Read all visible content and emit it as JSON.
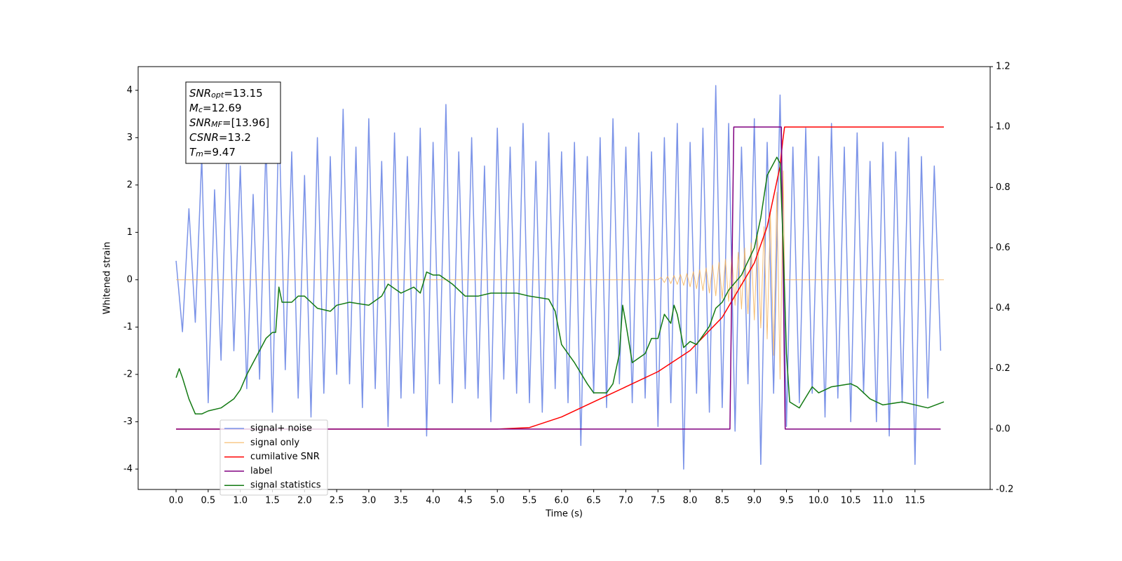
{
  "chart_data": {
    "type": "line",
    "xlabel": "Time (s)",
    "ylabel": "Whitened strain",
    "xlim": [
      -0.59,
      12.67
    ],
    "ylim": [
      -4.43,
      4.5
    ],
    "y2lim": [
      -0.2,
      1.2
    ],
    "xticks": [
      {
        "value": 0,
        "label": "0.0"
      },
      0.5,
      {
        "value": 1,
        "label": "1.0"
      },
      1.5,
      {
        "value": 2,
        "label": "2.0"
      },
      2.5,
      {
        "value": 3,
        "label": "3.0"
      },
      3.5,
      {
        "value": 4,
        "label": "4.0"
      },
      4.5,
      {
        "value": 5,
        "label": "5.0"
      },
      5.5,
      {
        "value": 6,
        "label": "6.0"
      },
      6.5,
      {
        "value": 7,
        "label": "7.0"
      },
      7.5,
      {
        "value": 8,
        "label": "8.0"
      },
      8.5,
      {
        "value": 9,
        "label": "9.0"
      },
      9.5,
      {
        "value": 10,
        "label": "10.0"
      },
      10.5,
      {
        "value": 11,
        "label": "11.0"
      },
      11.5
    ],
    "yticks": [
      -4,
      -3,
      -2,
      -1,
      0,
      1,
      2,
      3,
      4
    ],
    "y2ticks": [
      -0.2,
      {
        "value": 0,
        "label": "0.0"
      },
      0.2,
      0.4,
      0.6,
      0.8,
      {
        "value": 1,
        "label": "1.0"
      },
      1.2
    ],
    "legend": "lower left",
    "annotations": [
      {
        "base": "SNR",
        "sub": "opt",
        "rest": "=13.15"
      },
      {
        "base": "M",
        "sub": "c",
        "rest": "=12.69"
      },
      {
        "base": "SNR",
        "sub": "MF",
        "rest": "=[13.96]"
      },
      {
        "base": "CSNR",
        "sub": "",
        "rest": "=13.2"
      },
      {
        "base": "T",
        "sub": "m",
        "rest": "=9.47"
      }
    ],
    "series": [
      {
        "name": "signal+ noise",
        "color": "#7b93e8",
        "x": [
          0.0,
          0.1,
          0.2,
          0.3,
          0.4,
          0.5,
          0.6,
          0.7,
          0.8,
          0.9,
          1.0,
          1.1,
          1.2,
          1.3,
          1.4,
          1.5,
          1.6,
          1.7,
          1.8,
          1.9,
          2.0,
          2.1,
          2.2,
          2.3,
          2.4,
          2.5,
          2.6,
          2.7,
          2.8,
          2.9,
          3.0,
          3.1,
          3.2,
          3.3,
          3.4,
          3.5,
          3.6,
          3.7,
          3.8,
          3.9,
          4.0,
          4.1,
          4.2,
          4.3,
          4.4,
          4.5,
          4.6,
          4.7,
          4.8,
          4.9,
          5.0,
          5.1,
          5.2,
          5.3,
          5.4,
          5.5,
          5.6,
          5.7,
          5.8,
          5.9,
          6.0,
          6.1,
          6.2,
          6.3,
          6.4,
          6.5,
          6.6,
          6.7,
          6.8,
          6.9,
          7.0,
          7.1,
          7.2,
          7.3,
          7.4,
          7.5,
          7.6,
          7.7,
          7.8,
          7.9,
          8.0,
          8.1,
          8.2,
          8.3,
          8.4,
          8.5,
          8.6,
          8.7,
          8.8,
          8.9,
          9.0,
          9.1,
          9.2,
          9.3,
          9.4,
          9.5,
          9.6,
          9.7,
          9.8,
          9.9,
          10.0,
          10.1,
          10.2,
          10.3,
          10.4,
          10.5,
          10.6,
          10.7,
          10.8,
          10.9,
          11.0,
          11.1,
          11.2,
          11.3,
          11.4,
          11.5,
          11.6,
          11.7,
          11.8,
          11.9
        ],
        "values": [
          0.4,
          -1.1,
          1.5,
          -0.9,
          2.6,
          -2.6,
          1.9,
          -1.7,
          3.3,
          -1.5,
          2.4,
          -2.3,
          1.8,
          -2.1,
          2.9,
          -2.8,
          3.5,
          -1.9,
          2.7,
          -2.5,
          2.2,
          -2.9,
          3.0,
          -2.4,
          2.6,
          -2.0,
          3.6,
          -2.2,
          2.8,
          -2.7,
          3.4,
          -2.3,
          2.5,
          -3.1,
          3.1,
          -2.5,
          2.6,
          -2.4,
          3.2,
          -3.3,
          2.9,
          -2.2,
          3.7,
          -2.6,
          2.7,
          -2.3,
          3.0,
          -2.5,
          2.4,
          -3.0,
          3.2,
          -2.1,
          2.8,
          -2.4,
          3.3,
          -2.6,
          2.5,
          -2.8,
          3.1,
          -2.3,
          2.7,
          -2.6,
          2.9,
          -3.5,
          2.6,
          -2.4,
          3.0,
          -2.7,
          3.4,
          -2.2,
          2.8,
          -2.6,
          3.1,
          -2.5,
          2.7,
          -3.1,
          3.0,
          -2.6,
          3.3,
          -4.0,
          2.9,
          -2.4,
          3.2,
          -2.8,
          4.1,
          -2.7,
          3.3,
          -3.2,
          2.8,
          -2.2,
          3.4,
          -3.9,
          2.9,
          -2.4,
          3.9,
          -3.1,
          2.8,
          -2.6,
          3.2,
          -2.4,
          2.6,
          -2.9,
          3.3,
          -2.5,
          2.8,
          -3.0,
          3.1,
          -2.4,
          2.5,
          -3.0,
          2.9,
          -3.3,
          2.7,
          -2.6,
          3.0,
          -3.9,
          2.6,
          -2.5,
          2.4,
          -1.5
        ]
      },
      {
        "name": "signal only",
        "color": "#f5b35a",
        "x": [
          0,
          7.5,
          7.55,
          7.6,
          7.65,
          7.7,
          7.75,
          7.8,
          7.85,
          7.9,
          7.95,
          8.0,
          8.05,
          8.1,
          8.15,
          8.2,
          8.25,
          8.3,
          8.35,
          8.4,
          8.45,
          8.5,
          8.55,
          8.6,
          8.65,
          8.7,
          8.75,
          8.8,
          8.85,
          8.9,
          8.95,
          9.0,
          9.05,
          9.1,
          9.15,
          9.2,
          9.25,
          9.3,
          9.35,
          9.4,
          9.45,
          9.47,
          11.95
        ],
        "values": [
          0,
          0,
          0.05,
          -0.06,
          0.07,
          -0.08,
          0.09,
          -0.1,
          0.11,
          -0.12,
          0.13,
          -0.15,
          0.17,
          -0.19,
          0.21,
          -0.23,
          0.25,
          -0.28,
          0.31,
          -0.34,
          0.37,
          -0.4,
          0.43,
          -0.46,
          0.5,
          -0.54,
          0.58,
          -0.62,
          0.67,
          -0.72,
          0.78,
          -0.85,
          0.93,
          -1.02,
          1.12,
          -1.25,
          1.4,
          -1.6,
          1.85,
          -2.1,
          2.3,
          0,
          0
        ]
      },
      {
        "name": "cumilative SNR",
        "color": "#ff0000",
        "axis": "y2",
        "x": [
          0,
          5.0,
          5.5,
          6.0,
          6.5,
          7.0,
          7.5,
          8.0,
          8.5,
          9.0,
          9.2,
          9.3,
          9.4,
          9.44,
          9.47,
          11.95
        ],
        "values": [
          0,
          0,
          0.005,
          0.04,
          0.09,
          0.14,
          0.19,
          0.26,
          0.37,
          0.55,
          0.67,
          0.77,
          0.87,
          0.95,
          1.0,
          1.0
        ]
      },
      {
        "name": "label",
        "color": "#800080",
        "axis": "y2",
        "x": [
          0,
          8.62,
          8.68,
          9.42,
          9.48,
          11.9
        ],
        "values": [
          0,
          0,
          1,
          1,
          0,
          0
        ]
      },
      {
        "name": "signal statistics",
        "color": "#137a13",
        "axis": "y2",
        "x": [
          0,
          0.05,
          0.1,
          0.2,
          0.3,
          0.4,
          0.5,
          0.7,
          0.9,
          1.0,
          1.1,
          1.2,
          1.3,
          1.4,
          1.5,
          1.55,
          1.6,
          1.65,
          1.8,
          1.9,
          2.0,
          2.1,
          2.2,
          2.4,
          2.5,
          2.7,
          3.0,
          3.2,
          3.3,
          3.5,
          3.7,
          3.8,
          3.9,
          4.0,
          4.1,
          4.3,
          4.5,
          4.7,
          4.9,
          5.0,
          5.3,
          5.5,
          5.8,
          5.9,
          6.0,
          6.2,
          6.4,
          6.5,
          6.7,
          6.8,
          6.9,
          6.95,
          7.0,
          7.1,
          7.3,
          7.4,
          7.5,
          7.6,
          7.7,
          7.75,
          7.8,
          7.9,
          8.0,
          8.1,
          8.3,
          8.4,
          8.5,
          8.6,
          8.8,
          9.0,
          9.1,
          9.2,
          9.35,
          9.4,
          9.45,
          9.5,
          9.55,
          9.7,
          9.9,
          10.0,
          10.2,
          10.5,
          10.6,
          10.8,
          11.0,
          11.3,
          11.5,
          11.7,
          11.95
        ],
        "values": [
          0.17,
          0.2,
          0.17,
          0.1,
          0.05,
          0.05,
          0.06,
          0.07,
          0.1,
          0.13,
          0.18,
          0.22,
          0.26,
          0.3,
          0.32,
          0.32,
          0.47,
          0.42,
          0.42,
          0.44,
          0.44,
          0.42,
          0.4,
          0.39,
          0.41,
          0.42,
          0.41,
          0.44,
          0.48,
          0.45,
          0.47,
          0.45,
          0.52,
          0.51,
          0.51,
          0.48,
          0.44,
          0.44,
          0.45,
          0.45,
          0.45,
          0.44,
          0.43,
          0.39,
          0.28,
          0.22,
          0.15,
          0.12,
          0.12,
          0.15,
          0.25,
          0.41,
          0.35,
          0.22,
          0.25,
          0.3,
          0.3,
          0.38,
          0.35,
          0.41,
          0.38,
          0.27,
          0.29,
          0.28,
          0.34,
          0.4,
          0.42,
          0.46,
          0.51,
          0.6,
          0.7,
          0.84,
          0.9,
          0.88,
          0.6,
          0.25,
          0.09,
          0.07,
          0.14,
          0.12,
          0.14,
          0.15,
          0.14,
          0.1,
          0.08,
          0.09,
          0.08,
          0.07,
          0.09
        ]
      }
    ]
  }
}
